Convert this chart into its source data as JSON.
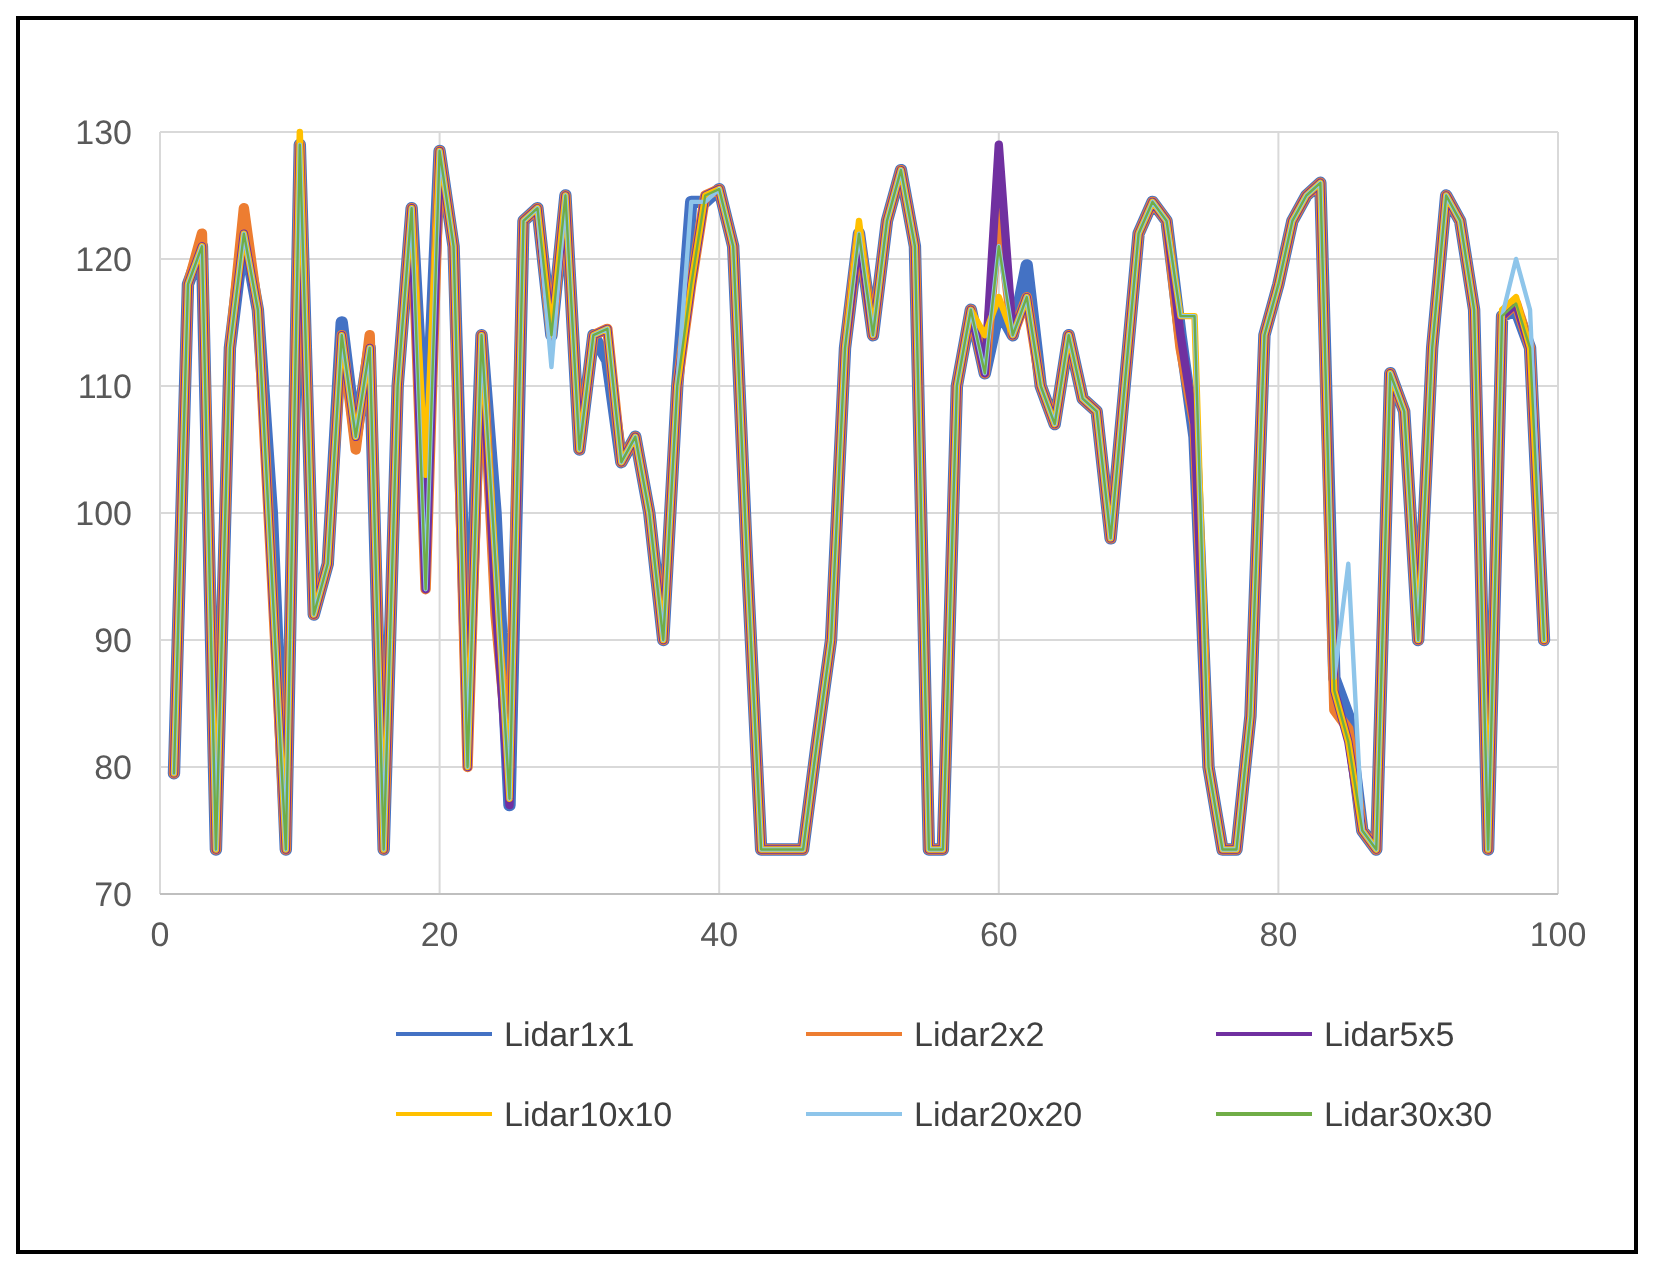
{
  "chart_data": {
    "type": "line",
    "x": [
      1,
      2,
      3,
      4,
      5,
      6,
      7,
      8,
      9,
      10,
      11,
      12,
      13,
      14,
      15,
      16,
      17,
      18,
      19,
      20,
      21,
      22,
      23,
      24,
      25,
      26,
      27,
      28,
      29,
      30,
      31,
      32,
      33,
      34,
      35,
      36,
      37,
      38,
      39,
      40,
      41,
      42,
      43,
      44,
      45,
      46,
      47,
      48,
      49,
      50,
      51,
      52,
      53,
      54,
      55,
      56,
      57,
      58,
      59,
      60,
      61,
      62,
      63,
      64,
      65,
      66,
      67,
      68,
      69,
      70,
      71,
      72,
      73,
      74,
      75,
      76,
      77,
      78,
      79,
      80,
      81,
      82,
      83,
      84,
      85,
      86,
      87,
      88,
      89,
      90,
      91,
      92,
      93,
      94,
      95,
      96,
      97,
      98,
      99
    ],
    "xlim": [
      0,
      100
    ],
    "xticks": [
      0,
      20,
      40,
      60,
      80,
      100
    ],
    "ylim": [
      70,
      130
    ],
    "yticks": [
      70,
      80,
      90,
      100,
      110,
      120,
      130
    ],
    "grid": true,
    "legend": "bottom",
    "series": [
      {
        "name": "Lidar1x1",
        "color": "#4472c4",
        "values": [
          79.5,
          118,
          121,
          73.5,
          113,
          122,
          116,
          100,
          73.5,
          129,
          92,
          96,
          115,
          106,
          113,
          73.5,
          110,
          124,
          104,
          128.5,
          121,
          85,
          114,
          100,
          77,
          123,
          124,
          114,
          125,
          105,
          114,
          112,
          104,
          106,
          100,
          90,
          110,
          124.5,
          124.5,
          125.5,
          121,
          96,
          73.5,
          73.5,
          73.5,
          73.5,
          82,
          90,
          113,
          122,
          114,
          123,
          127,
          121,
          73.5,
          73.5,
          110,
          116,
          111,
          116,
          114,
          119.5,
          110,
          107,
          114,
          109,
          108,
          98,
          110,
          122,
          124.5,
          123,
          114,
          106,
          80,
          73.5,
          73.5,
          84,
          114,
          118,
          123,
          125,
          126,
          87,
          84,
          75,
          73.5,
          111,
          108,
          90,
          113,
          125,
          123,
          116,
          73.5,
          115.5,
          116,
          113,
          90
        ]
      },
      {
        "name": "Lidar2x2",
        "color": "#ed7d31",
        "values": [
          79.5,
          118,
          122,
          73.5,
          113,
          124,
          116,
          95,
          73.5,
          129,
          92,
          96,
          114,
          105,
          114,
          73.5,
          110,
          124,
          94,
          128.5,
          121,
          80,
          114,
          92,
          80,
          123,
          124,
          114,
          125,
          105,
          114,
          114.5,
          104,
          106,
          100,
          90,
          110,
          118,
          125,
          125.5,
          121,
          96,
          73.5,
          73.5,
          73.5,
          73.5,
          82,
          90,
          113,
          122,
          114,
          123,
          127,
          121,
          73.5,
          73.5,
          110,
          116,
          111,
          124,
          114,
          117,
          110,
          107,
          114,
          109,
          108,
          98,
          110,
          122,
          124.5,
          123,
          113,
          107,
          80,
          73.5,
          73.5,
          84,
          114,
          118,
          123,
          125,
          126,
          84.5,
          83,
          75,
          73.5,
          111,
          108,
          90,
          113,
          125,
          123,
          116,
          73.5,
          115.5,
          116.5,
          113,
          90
        ]
      },
      {
        "name": "Lidar5x5",
        "color": "#7030a0",
        "values": [
          79.5,
          118,
          121,
          73.5,
          113,
          122,
          116,
          95,
          73.5,
          129,
          92,
          96,
          114,
          106,
          113,
          73.5,
          110,
          124,
          94,
          128.5,
          121,
          80,
          114,
          93,
          77,
          123,
          124,
          114,
          125,
          105,
          114,
          114.5,
          104,
          106,
          100,
          90,
          110,
          118,
          125,
          125.5,
          121,
          96,
          73.5,
          73.5,
          73.5,
          73.5,
          82,
          90,
          113,
          122,
          114,
          123,
          127,
          121,
          73.5,
          73.5,
          110,
          116,
          111,
          129,
          114,
          117,
          110,
          107,
          114,
          109,
          108,
          98,
          110,
          122,
          124.5,
          123,
          114,
          107,
          80,
          73.5,
          73.5,
          84,
          114,
          118,
          123,
          125,
          126,
          86,
          82,
          75,
          73.5,
          111,
          108,
          90,
          113,
          125,
          123,
          116,
          73.5,
          115.5,
          116.5,
          113,
          90
        ]
      },
      {
        "name": "Lidar10x10",
        "color": "#ffc000",
        "values": [
          79.5,
          118,
          121,
          73.5,
          113,
          122,
          116,
          95,
          73.5,
          130,
          92,
          96,
          114,
          106,
          113,
          73.5,
          110,
          124,
          103,
          128.5,
          121,
          80,
          114,
          96,
          77.5,
          123,
          124,
          114,
          125,
          105,
          114,
          114.5,
          104,
          106,
          100,
          90,
          110,
          118,
          125,
          125.5,
          121,
          96,
          73.5,
          73.5,
          73.5,
          73.5,
          82,
          90,
          113,
          123,
          114,
          123,
          127,
          121,
          73.5,
          73.5,
          110,
          116,
          114,
          117,
          114,
          117,
          110,
          107,
          114,
          109,
          108,
          98,
          110,
          122,
          124.5,
          123,
          115.5,
          115.5,
          80,
          73.5,
          73.5,
          84,
          114,
          118,
          123,
          125,
          126,
          86,
          82,
          75,
          73.5,
          111,
          108,
          90,
          113,
          125,
          123,
          116,
          73.5,
          116,
          117,
          113,
          90
        ]
      },
      {
        "name": "Lidar20x20",
        "color": "#8ec5ea",
        "values": [
          79.5,
          118,
          121,
          73.5,
          113,
          122,
          116,
          95,
          73.5,
          129,
          92,
          96,
          114,
          106,
          113,
          73.5,
          110,
          124,
          94,
          128.5,
          121,
          80,
          114,
          96,
          77.5,
          123,
          124,
          111.5,
          125,
          105,
          114,
          114.5,
          104,
          106,
          100,
          90,
          110,
          124.5,
          124.5,
          125.5,
          121,
          96,
          73.5,
          73.5,
          73.5,
          73.5,
          82,
          90,
          113,
          122,
          114,
          123,
          127,
          121,
          73.5,
          73.5,
          110,
          116,
          111,
          121,
          114,
          117,
          110,
          107,
          114,
          109,
          108,
          98,
          110,
          122,
          124.5,
          123,
          115.5,
          115.5,
          80,
          73.5,
          73.5,
          84,
          114,
          118,
          123,
          125,
          126,
          87,
          96,
          75,
          73.5,
          111,
          108,
          90,
          113,
          125,
          123,
          116,
          73.5,
          115.5,
          120,
          116,
          90
        ]
      },
      {
        "name": "Lidar30x30",
        "color": "#70ad47",
        "values": [
          79.5,
          118,
          121,
          73.5,
          113,
          122,
          116,
          95,
          73.5,
          129,
          92,
          96,
          114,
          106,
          113,
          73.5,
          110,
          124,
          94,
          128.5,
          121,
          80,
          114,
          96,
          77.5,
          123,
          124,
          114,
          125,
          105,
          114,
          114.5,
          104,
          106,
          100,
          90,
          110,
          118,
          125,
          125.5,
          121,
          96,
          73.5,
          73.5,
          73.5,
          73.5,
          82,
          90,
          113,
          122,
          114,
          123,
          127,
          121,
          73.5,
          73.5,
          110,
          116,
          111,
          121,
          114,
          117,
          110,
          107,
          114,
          109,
          108,
          98,
          110,
          122,
          124.5,
          123,
          115.5,
          115.5,
          80,
          73.5,
          73.5,
          84,
          114,
          118,
          123,
          125,
          126,
          86,
          82,
          75,
          73.5,
          111,
          108,
          90,
          113,
          125,
          123,
          116,
          73.5,
          115.5,
          116.5,
          113,
          90
        ]
      }
    ]
  }
}
